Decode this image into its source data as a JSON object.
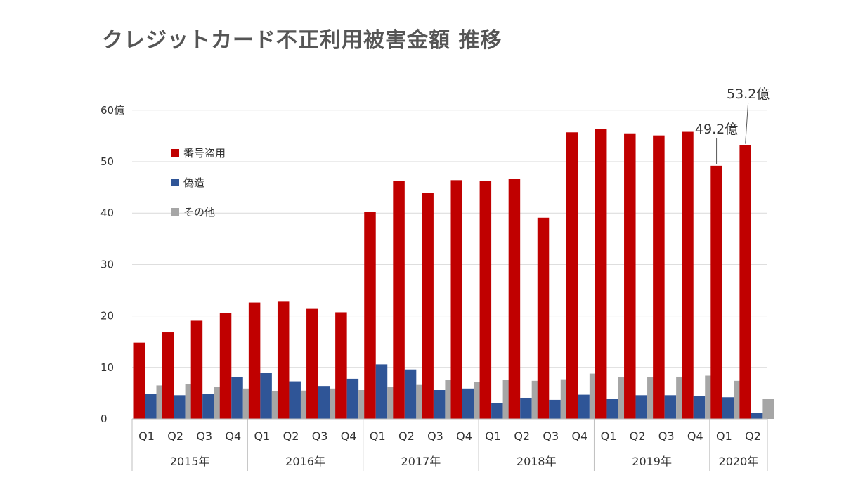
{
  "chart_data": {
    "type": "bar",
    "title": "クレジットカード不正利用被害金額 推移",
    "quarters": [
      "Q1",
      "Q2",
      "Q3",
      "Q4",
      "Q1",
      "Q2",
      "Q3",
      "Q4",
      "Q1",
      "Q2",
      "Q3",
      "Q4",
      "Q1",
      "Q2",
      "Q3",
      "Q4",
      "Q1",
      "Q2",
      "Q3",
      "Q4",
      "Q1",
      "Q2"
    ],
    "years": [
      {
        "label": "2015年",
        "count": 4
      },
      {
        "label": "2016年",
        "count": 4
      },
      {
        "label": "2017年",
        "count": 4
      },
      {
        "label": "2018年",
        "count": 4
      },
      {
        "label": "2019年",
        "count": 4
      },
      {
        "label": "2020年",
        "count": 2
      }
    ],
    "series": [
      {
        "name": "番号盗用",
        "color": "#c00000",
        "values": [
          14.8,
          16.8,
          19.2,
          20.6,
          22.6,
          22.9,
          21.5,
          20.7,
          40.2,
          46.2,
          43.9,
          46.4,
          46.2,
          46.7,
          39.1,
          55.7,
          56.3,
          55.5,
          55.1,
          55.8,
          49.2,
          53.2
        ]
      },
      {
        "name": "偽造",
        "color": "#2f5597",
        "values": [
          4.9,
          4.6,
          4.9,
          8.1,
          9.0,
          7.3,
          6.4,
          7.8,
          10.6,
          9.6,
          5.6,
          5.9,
          3.1,
          4.1,
          3.7,
          4.7,
          3.9,
          4.6,
          4.6,
          4.4,
          4.2,
          1.1
        ]
      },
      {
        "name": "その他",
        "color": "#a6a6a6",
        "values": [
          6.5,
          6.7,
          6.2,
          5.9,
          5.4,
          5.5,
          5.9,
          5.6,
          6.2,
          6.6,
          7.6,
          7.2,
          7.6,
          7.4,
          7.7,
          8.8,
          8.1,
          8.1,
          8.2,
          8.4,
          7.4,
          3.9
        ]
      }
    ],
    "y_ticks": [
      "0",
      "10",
      "20",
      "30",
      "40",
      "50",
      "60億"
    ],
    "ylim": [
      0,
      60
    ],
    "grid": true,
    "legend_position": "top-left",
    "annotations": [
      {
        "text": "49.2億",
        "series": 0,
        "index": 20
      },
      {
        "text": "53.2億",
        "series": 0,
        "index": 21
      }
    ]
  }
}
